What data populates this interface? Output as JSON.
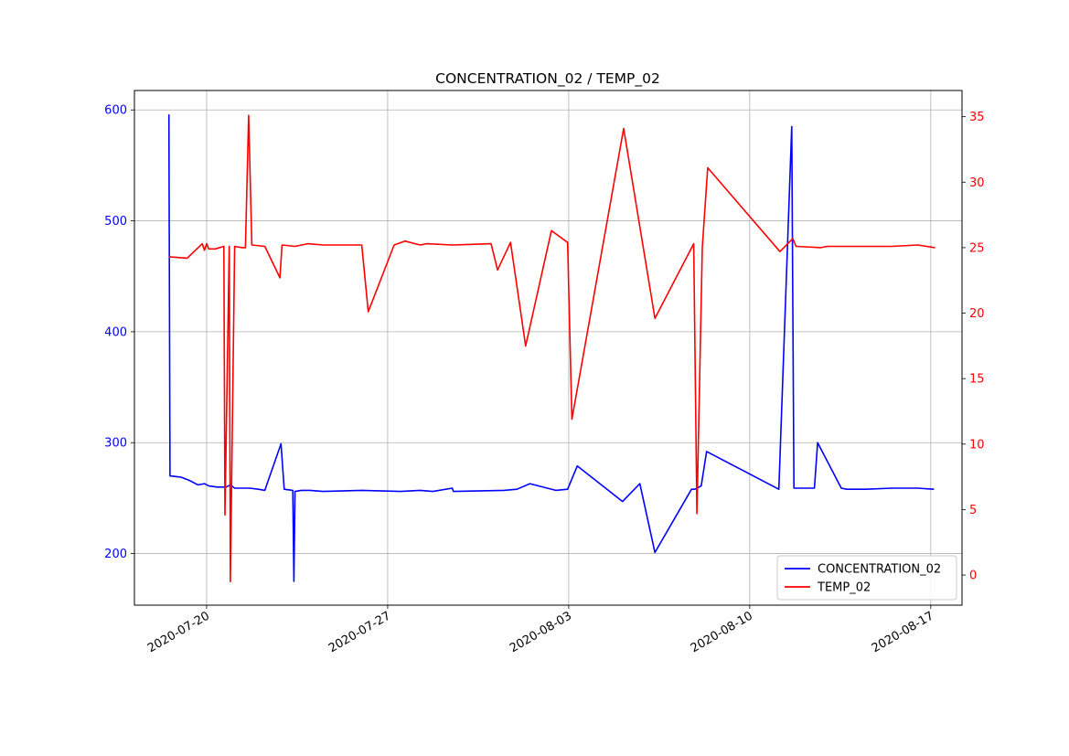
{
  "chart_data": {
    "type": "line",
    "title": "CONCENTRATION_02 / TEMP_02",
    "grid": true,
    "legend": "lower right",
    "x_ticks": [
      "2020-07-20",
      "2020-07-27",
      "2020-08-03",
      "2020-08-10",
      "2020-08-17"
    ],
    "x_range": [
      "2020-07-17T05:00",
      "2020-08-18T05:00"
    ],
    "left_axis": {
      "ylim": [
        153.5,
        617.5
      ],
      "ticks": [
        200,
        300,
        400,
        500,
        600
      ],
      "color": "#0000ff"
    },
    "right_axis": {
      "ylim": [
        -2.3,
        37.0
      ],
      "ticks": [
        0,
        5,
        10,
        15,
        20,
        25,
        30,
        35
      ],
      "color": "#ff0000"
    },
    "series": [
      {
        "name": "CONCENTRATION_02",
        "axis": "left",
        "color": "#0000ff",
        "points": [
          [
            "2020-07-18T13:00",
            596
          ],
          [
            "2020-07-18T14:00",
            270
          ],
          [
            "2020-07-19T00:00",
            269
          ],
          [
            "2020-07-19T08:00",
            266
          ],
          [
            "2020-07-19T16:00",
            262
          ],
          [
            "2020-07-19T22:00",
            263
          ],
          [
            "2020-07-20T02:00",
            261
          ],
          [
            "2020-07-20T10:00",
            260
          ],
          [
            "2020-07-20T18:00",
            260
          ],
          [
            "2020-07-20T22:00",
            262
          ],
          [
            "2020-07-21T02:00",
            259
          ],
          [
            "2020-07-21T16:00",
            259
          ],
          [
            "2020-07-22T00:00",
            258
          ],
          [
            "2020-07-22T06:00",
            257
          ],
          [
            "2020-07-22T21:00",
            299
          ],
          [
            "2020-07-23T00:00",
            258
          ],
          [
            "2020-07-23T08:00",
            257
          ],
          [
            "2020-07-23T09:00",
            175
          ],
          [
            "2020-07-23T10:00",
            256
          ],
          [
            "2020-07-23T16:00",
            257
          ],
          [
            "2020-07-24T00:00",
            257
          ],
          [
            "2020-07-24T12:00",
            256
          ],
          [
            "2020-07-26T00:00",
            257
          ],
          [
            "2020-07-27T12:00",
            256
          ],
          [
            "2020-07-28T06:00",
            257
          ],
          [
            "2020-07-28T18:00",
            256
          ],
          [
            "2020-07-29T12:00",
            259
          ],
          [
            "2020-07-29T13:00",
            256
          ],
          [
            "2020-07-31T12:00",
            257
          ],
          [
            "2020-08-01T00:00",
            258
          ],
          [
            "2020-08-01T12:00",
            263
          ],
          [
            "2020-08-02T12:00",
            257
          ],
          [
            "2020-08-02T23:00",
            258
          ],
          [
            "2020-08-03T08:00",
            279
          ],
          [
            "2020-08-05T02:00",
            247
          ],
          [
            "2020-08-05T18:00",
            263
          ],
          [
            "2020-08-06T08:00",
            201
          ],
          [
            "2020-08-07T18:00",
            258
          ],
          [
            "2020-08-07T21:00",
            258
          ],
          [
            "2020-08-08T03:00",
            261
          ],
          [
            "2020-08-08T08:00",
            292
          ],
          [
            "2020-08-11T03:00",
            258
          ],
          [
            "2020-08-11T15:00",
            585
          ],
          [
            "2020-08-11T17:00",
            259
          ],
          [
            "2020-08-12T12:00",
            259
          ],
          [
            "2020-08-12T15:00",
            300
          ],
          [
            "2020-08-13T13:00",
            259
          ],
          [
            "2020-08-13T18:00",
            258
          ],
          [
            "2020-08-14T12:00",
            258
          ],
          [
            "2020-08-15T12:00",
            259
          ],
          [
            "2020-08-16T12:00",
            259
          ],
          [
            "2020-08-17T03:00",
            258
          ]
        ]
      },
      {
        "name": "TEMP_02",
        "axis": "right",
        "color": "#ff0000",
        "points": [
          [
            "2020-07-18T13:00",
            24.3
          ],
          [
            "2020-07-19T06:00",
            24.2
          ],
          [
            "2020-07-19T20:00",
            25.3
          ],
          [
            "2020-07-19T22:00",
            24.8
          ],
          [
            "2020-07-20T00:00",
            25.3
          ],
          [
            "2020-07-20T02:00",
            24.9
          ],
          [
            "2020-07-20T08:00",
            24.9
          ],
          [
            "2020-07-20T16:00",
            25.1
          ],
          [
            "2020-07-20T17:00",
            4.6
          ],
          [
            "2020-07-20T21:00",
            25.1
          ],
          [
            "2020-07-20T22:00",
            -0.5
          ],
          [
            "2020-07-21T02:00",
            25.1
          ],
          [
            "2020-07-21T09:00",
            25.0
          ],
          [
            "2020-07-21T12:00",
            25.0
          ],
          [
            "2020-07-21T15:00",
            35.1
          ],
          [
            "2020-07-21T18:00",
            25.2
          ],
          [
            "2020-07-22T06:00",
            25.1
          ],
          [
            "2020-07-22T20:00",
            22.7
          ],
          [
            "2020-07-22T22:00",
            25.2
          ],
          [
            "2020-07-23T10:00",
            25.1
          ],
          [
            "2020-07-23T22:00",
            25.3
          ],
          [
            "2020-07-24T12:00",
            25.2
          ],
          [
            "2020-07-26T00:00",
            25.2
          ],
          [
            "2020-07-26T06:00",
            20.1
          ],
          [
            "2020-07-27T06:00",
            25.2
          ],
          [
            "2020-07-27T16:00",
            25.5
          ],
          [
            "2020-07-28T06:00",
            25.2
          ],
          [
            "2020-07-28T12:00",
            25.3
          ],
          [
            "2020-07-29T12:00",
            25.2
          ],
          [
            "2020-07-31T00:00",
            25.3
          ],
          [
            "2020-07-31T06:00",
            23.3
          ],
          [
            "2020-07-31T18:00",
            25.4
          ],
          [
            "2020-08-01T08:00",
            17.5
          ],
          [
            "2020-08-02T08:00",
            26.3
          ],
          [
            "2020-08-02T23:00",
            25.4
          ],
          [
            "2020-08-03T03:00",
            11.9
          ],
          [
            "2020-08-05T03:00",
            34.1
          ],
          [
            "2020-08-06T08:00",
            19.6
          ],
          [
            "2020-08-07T20:00",
            25.3
          ],
          [
            "2020-08-07T23:00",
            4.7
          ],
          [
            "2020-08-08T04:00",
            25.0
          ],
          [
            "2020-08-08T09:00",
            31.1
          ],
          [
            "2020-08-11T04:00",
            24.7
          ],
          [
            "2020-08-11T16:00",
            25.7
          ],
          [
            "2020-08-11T19:00",
            25.1
          ],
          [
            "2020-08-12T18:00",
            25.0
          ],
          [
            "2020-08-13T00:00",
            25.1
          ],
          [
            "2020-08-14T02:00",
            25.1
          ],
          [
            "2020-08-15T12:00",
            25.1
          ],
          [
            "2020-08-16T12:00",
            25.2
          ],
          [
            "2020-08-17T04:00",
            25.0
          ]
        ]
      }
    ]
  }
}
